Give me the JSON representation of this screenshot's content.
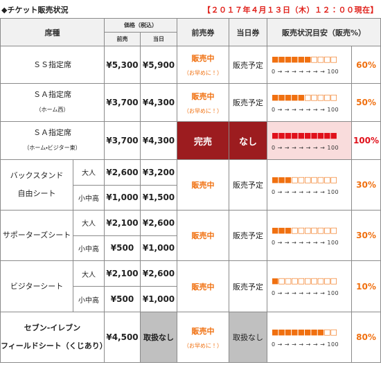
{
  "header": {
    "title": "◆チケット販売状況",
    "timestamp": "【２０１７年４月１３日（木）１２：００現在】"
  },
  "table": {
    "columns": {
      "seat": "席種",
      "price": "価格（税込）",
      "advance": "前売",
      "day": "当日",
      "advance_ticket": "前売券",
      "day_ticket": "当日券",
      "status": "販売状況目安（販売%）"
    },
    "rows": [
      {
        "seat": [
          "ＳＳ指定席"
        ],
        "prices": [
          {
            "advance": "¥5,300",
            "day": "¥5,900"
          }
        ],
        "advance_ticket": "販売中",
        "note": "（お早めに！）",
        "day_ticket": "販売予定",
        "gauge": "■■■■■■□□□□",
        "scale": "0 → → → → → → → 100",
        "percent": "60%",
        "gauge_color": "#f07010"
      },
      {
        "seat": [
          "ＳＡ指定席",
          "（ホーム西）"
        ],
        "prices": [
          {
            "advance": "¥3,700",
            "day": "¥4,300"
          }
        ],
        "advance_ticket": "販売中",
        "note": "（お早めに！）",
        "day_ticket": "販売予定",
        "gauge": "■■■■■□□□□□",
        "scale": "0 → → → → → → → 100",
        "percent": "50%",
        "gauge_color": "#f07010"
      },
      {
        "seat": [
          "ＳＡ指定席",
          "（ホーム・ビジター東）"
        ],
        "prices": [
          {
            "advance": "¥3,700",
            "day": "¥4,300"
          }
        ],
        "advance_ticket": "完売",
        "day_ticket": "なし",
        "gauge": "■■■■■■■■■■",
        "scale": "0 → → → → → → → 100",
        "percent": "100%",
        "gauge_color": "#e0101a",
        "ticket_bg": "#9c1c1f",
        "gauge_bg": "#f9dcdc"
      },
      {
        "seat": [
          "バックスタンド",
          "自由シート"
        ],
        "prices": [
          {
            "type": "大人",
            "advance": "¥2,600",
            "day": "¥3,200"
          },
          {
            "type": "小中高",
            "advance": "¥1,000",
            "day": "¥1,500"
          }
        ],
        "advance_ticket": "販売中",
        "day_ticket": "販売予定",
        "gauge": "■■■□□□□□□□",
        "scale": "0 → → → → → → → 100",
        "percent": "30%",
        "gauge_color": "#f07010"
      },
      {
        "seat": [
          "サポーターズシート"
        ],
        "prices": [
          {
            "type": "大人",
            "advance": "¥2,100",
            "day": "¥2,600"
          },
          {
            "type": "小中高",
            "advance": "¥500",
            "day": "¥1,000"
          }
        ],
        "advance_ticket": "販売中",
        "day_ticket": "販売予定",
        "gauge": "■■■□□□□□□□",
        "scale": "0 → → → → → → → 100",
        "percent": "30%",
        "gauge_color": "#f07010"
      },
      {
        "seat": [
          "ビジターシート"
        ],
        "prices": [
          {
            "type": "大人",
            "advance": "¥2,100",
            "day": "¥2,600"
          },
          {
            "type": "小中高",
            "advance": "¥500",
            "day": "¥1,000"
          }
        ],
        "advance_ticket": "販売中",
        "day_ticket": "販売予定",
        "gauge": "■□□□□□□□□□",
        "scale": "0 → → → → → → → 100",
        "percent": "10%",
        "gauge_color": "#f07010"
      },
      {
        "seat": [
          "セブン-イレブン",
          "フィールドシート（くじあり）"
        ],
        "prices": [
          {
            "advance": "¥4,500",
            "day": "取扱なし"
          }
        ],
        "advance_ticket": "販売中",
        "note": "（お早めに！）",
        "day_ticket": "取扱なし",
        "gauge": "■■■■■■■■□□",
        "scale": "0 → → → → → → → 100",
        "percent": "80%",
        "gauge_color": "#f07010",
        "gray_bg": "#c0c0c0"
      }
    ]
  }
}
